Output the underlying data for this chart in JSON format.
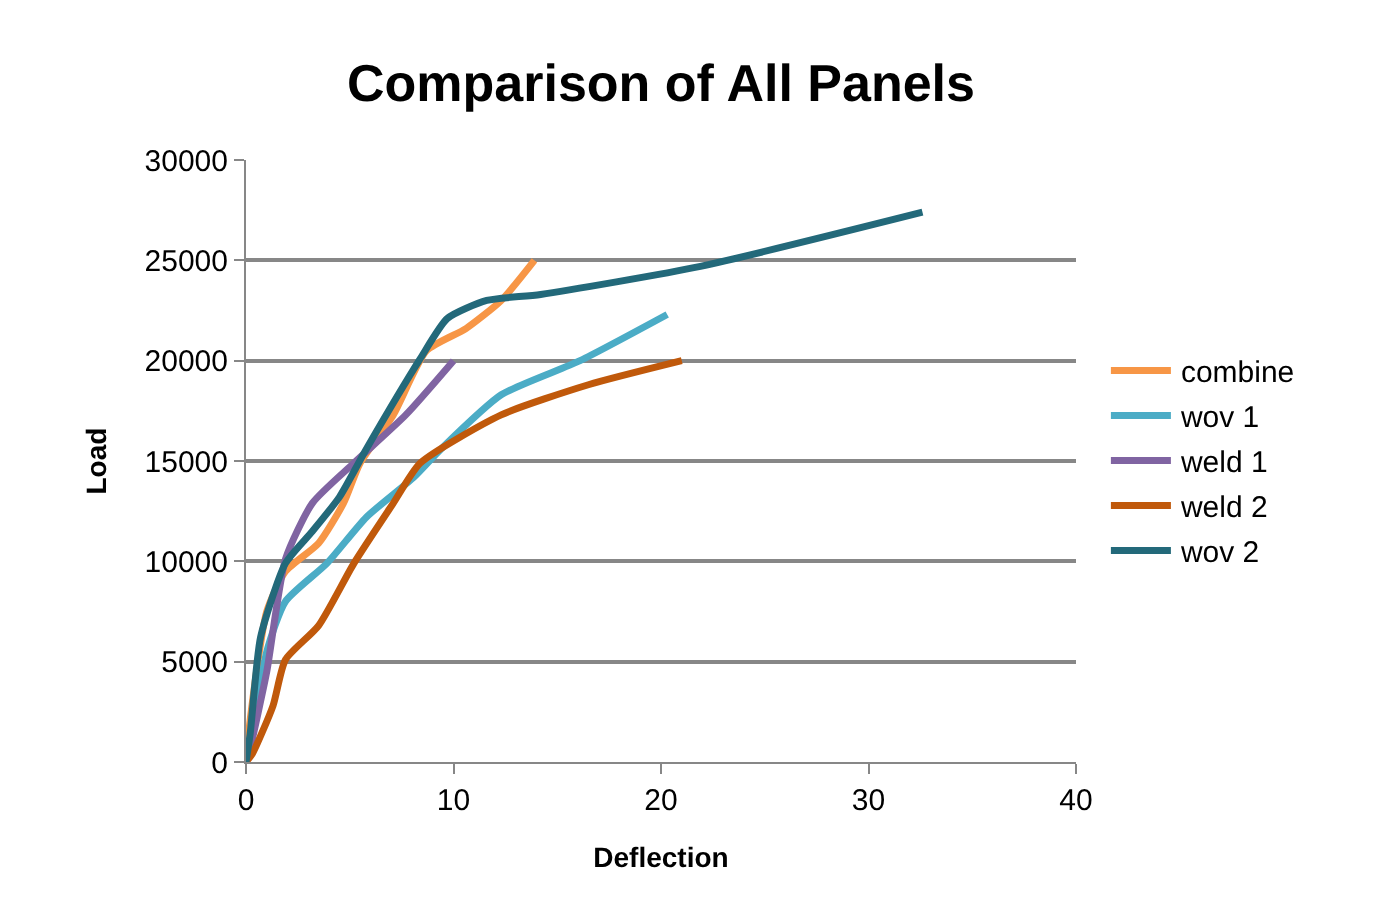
{
  "chart_data": {
    "type": "line",
    "title": "Comparison of All Panels",
    "xlabel": "Deflection",
    "ylabel": "Load",
    "xlim": [
      0,
      40
    ],
    "xticks": [
      0,
      10,
      20,
      30,
      40
    ],
    "ylim": [
      0,
      30000
    ],
    "yticks": [
      0,
      5000,
      10000,
      15000,
      20000,
      25000,
      30000
    ],
    "grid": "y",
    "legend": "right",
    "marker": "none",
    "line_style": "solid",
    "series": [
      {
        "name": "combine",
        "color": "#f79646",
        "x": [
          0,
          0.2,
          1.0,
          1.9,
          3.5,
          4.7,
          5.5,
          7.1,
          8.7,
          10.6,
          12.3,
          13.9
        ],
        "values": [
          0,
          2100,
          7500,
          9500,
          10900,
          12900,
          14900,
          17300,
          20500,
          21600,
          23000,
          25000
        ]
      },
      {
        "name": "wov 1",
        "color": "#4bacc6",
        "x": [
          0,
          0.2,
          1.0,
          1.9,
          3.9,
          5.8,
          8.1,
          9.4,
          12.3,
          16.1,
          20.3
        ],
        "values": [
          0,
          700,
          5500,
          8000,
          9900,
          12200,
          14200,
          15600,
          18300,
          20000,
          22300
        ]
      },
      {
        "name": "weld 1",
        "color": "#8064a2",
        "x": [
          0,
          0.2,
          1.0,
          1.9,
          3.2,
          5.2,
          7.7,
          10.0
        ],
        "values": [
          0,
          700,
          4500,
          10100,
          12900,
          14900,
          17300,
          20000
        ]
      },
      {
        "name": "weld 2",
        "color": "#c0590b",
        "x": [
          0,
          0.3,
          1.3,
          1.9,
          3.5,
          5.2,
          7.1,
          8.4,
          12.3,
          16.5,
          21.0
        ],
        "values": [
          0,
          400,
          2800,
          5100,
          6800,
          9900,
          12900,
          14900,
          17300,
          18800,
          20000
        ]
      },
      {
        "name": "wov 2",
        "color": "#23697a",
        "x": [
          0,
          0.2,
          0.7,
          1.9,
          3.2,
          4.5,
          5.8,
          8.4,
          9.7,
          11.6,
          14.2,
          21.9,
          32.6
        ],
        "values": [
          0,
          1400,
          6200,
          9900,
          11500,
          13200,
          15600,
          20100,
          22100,
          23000,
          23300,
          24700,
          27400
        ]
      }
    ]
  }
}
